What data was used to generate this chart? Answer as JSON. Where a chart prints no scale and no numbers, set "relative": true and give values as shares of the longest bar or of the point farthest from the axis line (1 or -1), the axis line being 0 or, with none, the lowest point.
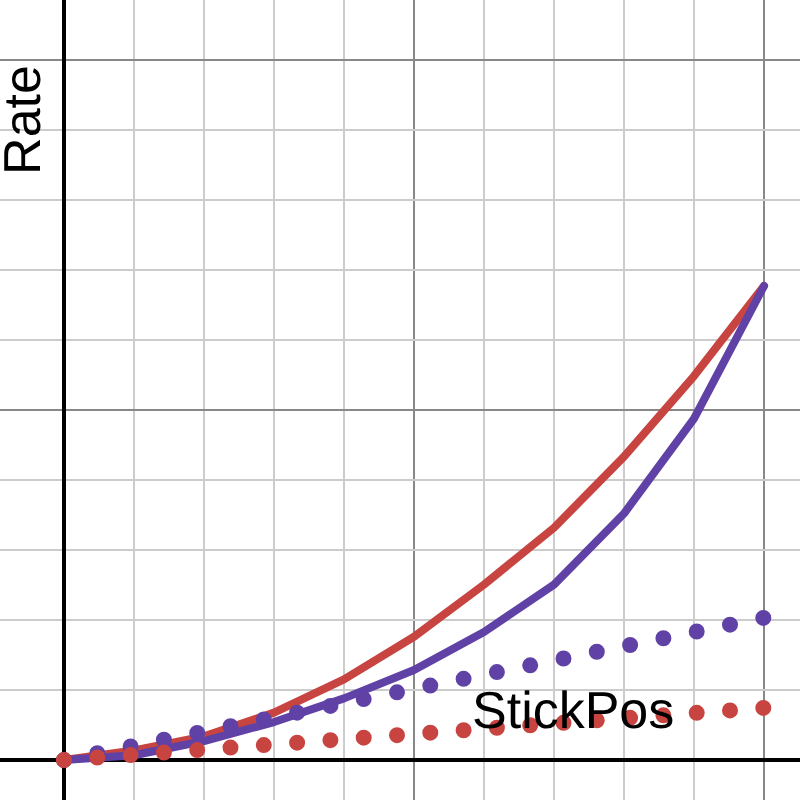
{
  "chart_data": {
    "type": "line",
    "relative": true,
    "ylabel": "Rate",
    "annotations": [
      "StickPos"
    ],
    "grid": true,
    "categories": [
      null,
      null,
      null,
      null,
      null,
      null,
      null,
      null,
      null,
      null,
      null
    ],
    "series": [
      {
        "color": "#c74440",
        "values": [
          0,
          0.02,
          0.05,
          0.1,
          0.17,
          0.26,
          0.37,
          0.49,
          0.64,
          0.81,
          1
        ],
        "line_style": "solid"
      },
      {
        "color": "#6042a6",
        "values": [
          0,
          0.01,
          0.04,
          0.08,
          0.13,
          0.19,
          0.27,
          0.37,
          0.52,
          0.72,
          1
        ],
        "line_style": "solid"
      },
      {
        "color": "#6042a6",
        "values": [
          0,
          0.03,
          0.06,
          0.09,
          0.12,
          0.15,
          0.18,
          0.21,
          0.24,
          0.27,
          0.3
        ],
        "line_style": "dotted"
      },
      {
        "color": "#c74440",
        "values": [
          0,
          0.011,
          0.022,
          0.033,
          0.044,
          0.055,
          0.066,
          0.077,
          0.088,
          0.099,
          0.11
        ],
        "line_style": "dotted"
      }
    ]
  }
}
